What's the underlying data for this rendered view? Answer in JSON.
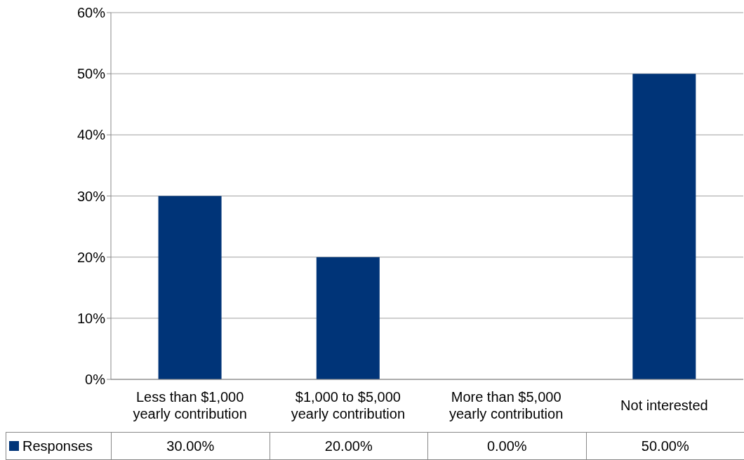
{
  "chart_data": {
    "type": "bar",
    "categories": [
      "Less than $1,000 yearly contribution",
      "$1,000 to $5,000 yearly contribution",
      "More than $5,000 yearly contribution",
      "Not interested"
    ],
    "series": [
      {
        "name": "Responses",
        "color": "#003478",
        "values": [
          30,
          20,
          0,
          50
        ],
        "value_labels": [
          "30.00%",
          "20.00%",
          "0.00%",
          "50.00%"
        ]
      }
    ],
    "ylim": [
      0,
      60
    ],
    "yticks": [
      {
        "value": 0,
        "label": "0%"
      },
      {
        "value": 10,
        "label": "10%"
      },
      {
        "value": 20,
        "label": "20%"
      },
      {
        "value": 30,
        "label": "30%"
      },
      {
        "value": 40,
        "label": "40%"
      },
      {
        "value": 50,
        "label": "50%"
      },
      {
        "value": 60,
        "label": "60%"
      }
    ],
    "grid": "y",
    "legend": "bottom"
  }
}
